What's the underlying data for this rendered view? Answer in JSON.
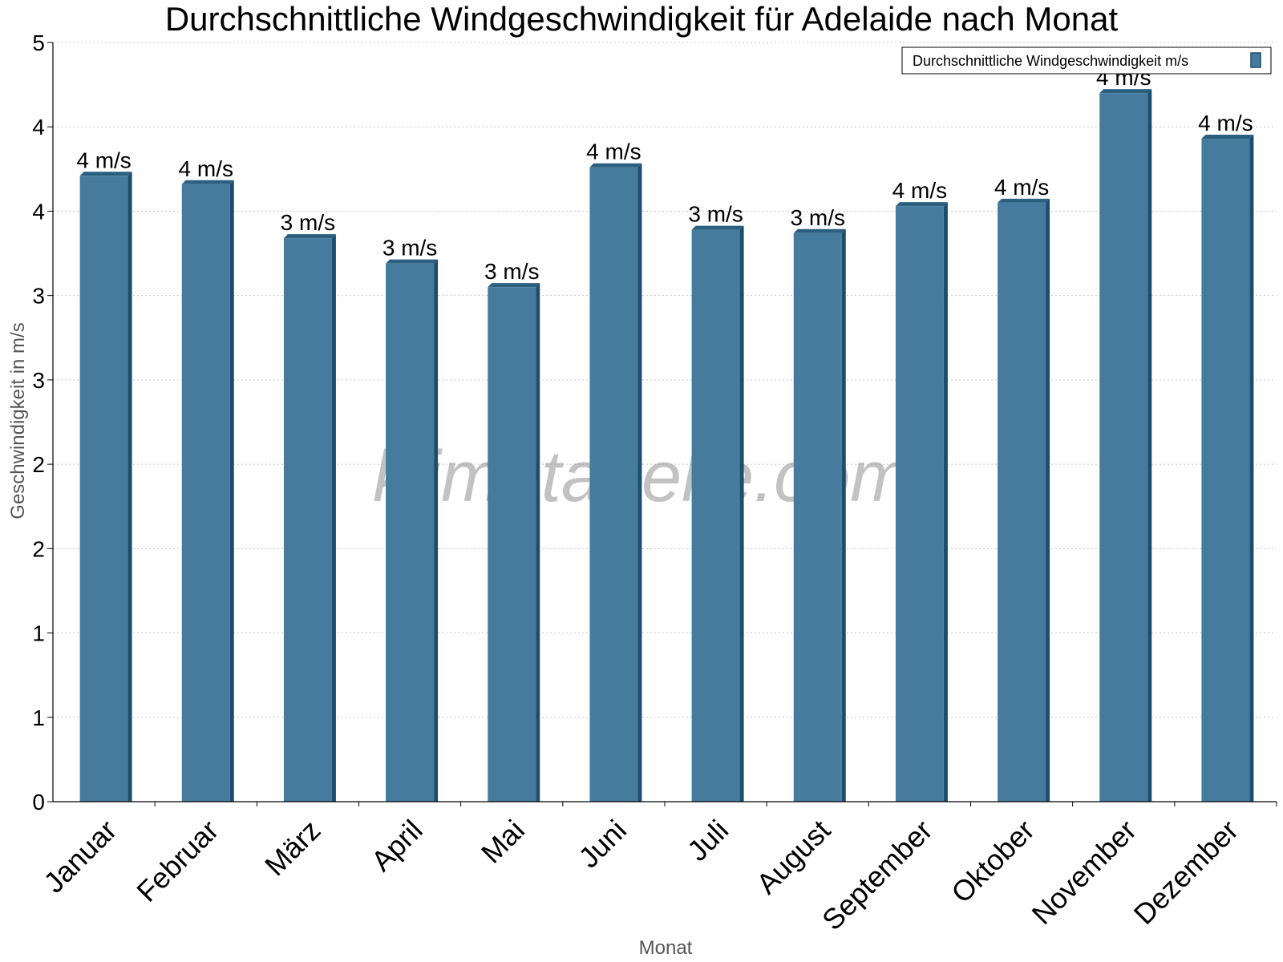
{
  "chart_data": {
    "type": "bar",
    "title": "Durchschnittliche Windgeschwindigkeit für Adelaide nach Monat",
    "xlabel": "Monat",
    "ylabel": "Geschwindigkeit in m/s",
    "ylim": [
      0,
      4.5
    ],
    "yticks": [
      0,
      0.5,
      1,
      1.5,
      2,
      2.5,
      3,
      3.5,
      4,
      4.5
    ],
    "ytick_labels": [
      "0",
      "1",
      "1",
      "2",
      "2",
      "3",
      "3",
      "4",
      "4",
      "5"
    ],
    "grid": true,
    "legend_position": "top-right",
    "categories": [
      "Januar",
      "Februar",
      "März",
      "April",
      "Mai",
      "Juni",
      "Juli",
      "August",
      "September",
      "Oktober",
      "November",
      "Dezember"
    ],
    "series": [
      {
        "name": "Durchschnittliche Windgeschwindigkeit m/s",
        "values": [
          3.71,
          3.66,
          3.34,
          3.19,
          3.05,
          3.76,
          3.39,
          3.37,
          3.53,
          3.55,
          4.2,
          3.93
        ],
        "labels": [
          "4 m/s",
          "4 m/s",
          "3 m/s",
          "3 m/s",
          "3 m/s",
          "4 m/s",
          "3 m/s",
          "3 m/s",
          "4 m/s",
          "4 m/s",
          "4 m/s",
          "4 m/s"
        ]
      }
    ],
    "colors": {
      "bar": "#467b9d",
      "bar_side": "#1d4d6d",
      "bar_top": "#2b5f80"
    },
    "watermark": "klimatabelle.com"
  }
}
